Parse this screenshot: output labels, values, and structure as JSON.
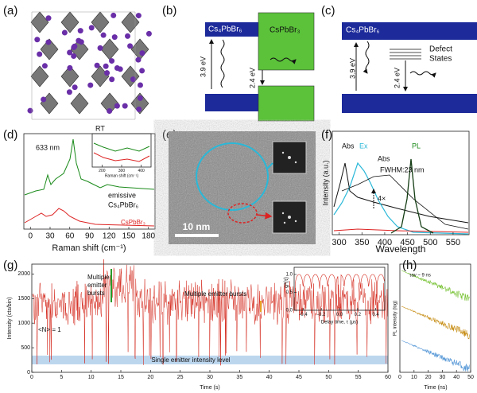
{
  "panels": {
    "a": {
      "label": "(a)"
    },
    "b": {
      "label": "(b)",
      "host": "Cs₄PbBr₆",
      "inclusion": "CsPbBr₃",
      "gap_host": "3.9 eV",
      "gap_inclusion": "2.4 eV"
    },
    "c": {
      "label": "(c)",
      "host": "Cs₄PbBr₆",
      "defect_line1": "Defect",
      "defect_line2": "States",
      "gap_host": "3.9 eV",
      "gap_defect": "2.4 eV"
    },
    "d": {
      "label": "(d)",
      "condition": "RT",
      "laser": "633 nm",
      "trace1_line1": "emissive",
      "trace1_line2": "Cs₄PbBr₆",
      "trace2": "CsPbBr₃",
      "xlabel": "Raman shift (cm⁻¹)",
      "xlim": [
        -10,
        190
      ],
      "xticks": [
        0,
        30,
        60,
        90,
        120,
        150,
        180
      ],
      "inset": {
        "xlabel": "Raman shift (cm⁻¹)",
        "xlim": [
          150,
          450
        ],
        "xticks": [
          200,
          300,
          400
        ]
      }
    },
    "e": {
      "label": "(e)",
      "scale_bar": "10 nm"
    },
    "f": {
      "label": "(f)",
      "abs": "Abs",
      "ex": "Ex",
      "pl": "PL",
      "abs2": "Abs",
      "fwhm": "FWHM:23 nm",
      "factor": "4×",
      "ylabel": "Intensity (a.u.)",
      "xlabel": "Wavelength",
      "xlim": [
        285,
        585
      ],
      "xticks": [
        300,
        350,
        400,
        450,
        500,
        550
      ]
    },
    "g": {
      "label": "(g)",
      "ylabel": "Intensity (cts/bin)",
      "xlabel": "Time (s)",
      "burst1_line1": "Multiple",
      "burst1_line2": "emitter",
      "burst1_line3": "bursts",
      "burst2": "Multiple emitter bursts",
      "n_label": "<N> = 1",
      "band_label": "Single emitter intensity level",
      "xlim": [
        0,
        60
      ],
      "xticks": [
        0,
        5,
        10,
        15,
        20,
        25,
        30,
        35,
        40,
        45,
        50,
        55,
        60
      ],
      "ylim": [
        0,
        2200
      ],
      "yticks": [
        0,
        500,
        1000,
        1500,
        2000
      ],
      "inset": {
        "ylabel": "g²(τ)",
        "xlabel": "Delay time, τ (μs)",
        "xlim": [
          -0.5,
          0.5
        ],
        "xticks": [
          -0.4,
          -0.2,
          {
            "value": 0,
            "label": "0.0"
          },
          0.2,
          0.4
        ],
        "ylim": [
          0,
          1.2
        ],
        "yticks": [
          {
            "value": 0,
            "label": "0.0"
          },
          0.5,
          {
            "value": 1,
            "label": "1.0"
          }
        ]
      }
    },
    "h": {
      "label": "(h)",
      "tau": "τav ~ 9 ns",
      "ylabel": "PL intensity (log)",
      "xlabel": "Time (ns)",
      "xlim": [
        0,
        50
      ],
      "xticks": [
        0,
        10,
        20,
        30,
        40,
        50
      ]
    }
  }
}
